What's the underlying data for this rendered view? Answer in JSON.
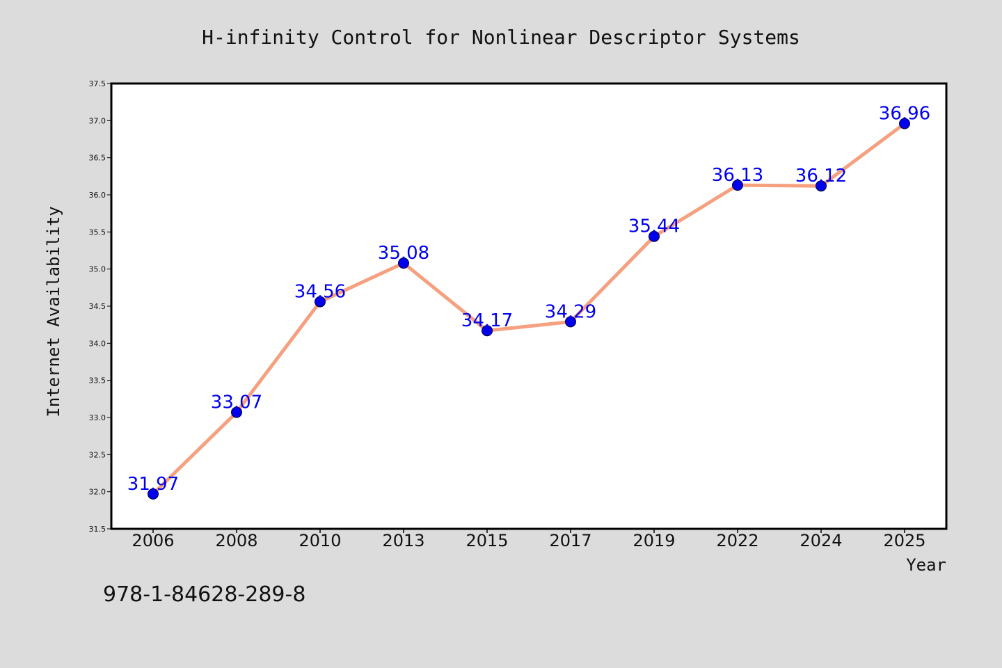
{
  "chart_data": {
    "type": "line",
    "title": "H-infinity Control for Nonlinear Descriptor Systems",
    "xlabel": "Year",
    "ylabel": "Internet Availability",
    "categories": [
      "2006",
      "2008",
      "2010",
      "2013",
      "2015",
      "2017",
      "2019",
      "2022",
      "2024",
      "2025"
    ],
    "series": [
      {
        "values": [
          31.97,
          33.07,
          34.56,
          35.08,
          34.17,
          34.29,
          35.44,
          36.13,
          36.12,
          36.96
        ],
        "labels": [
          "31.97",
          "33.07",
          "34.56",
          "35.08",
          "34.17",
          "34.29",
          "35.44",
          "36.13",
          "36.12",
          "36.96"
        ],
        "line_color": "#f5a07f",
        "marker_color": "#0000ee",
        "label_color": "#0000ee"
      }
    ],
    "ylim": [
      31.5,
      37.5
    ],
    "yticks": [
      "31.5",
      "32.0",
      "32.5",
      "33.0",
      "33.5",
      "34.0",
      "34.5",
      "35.0",
      "35.5",
      "36.0",
      "36.5",
      "37.0",
      "37.5"
    ],
    "grid": false,
    "legend": "none"
  },
  "footnote": "978-1-84628-289-8",
  "colors": {
    "background": "#dcdcdc",
    "plot_background": "#ffffff",
    "axis": "#000000"
  }
}
